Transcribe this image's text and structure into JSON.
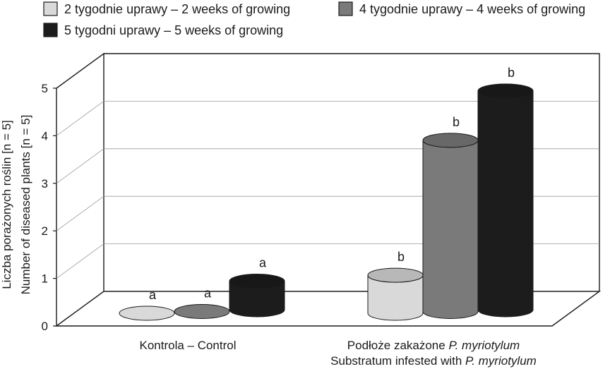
{
  "chart_data": {
    "type": "bar",
    "style": "3d-cylinder",
    "categories": [
      "Kontrola – Control",
      {
        "line1_prefix": "Podłoże zakażone ",
        "line1_italic": "P. myriotylum",
        "line2_prefix": "Substratum infested with ",
        "line2_italic": "P. myriotylum"
      }
    ],
    "series": [
      {
        "name": "2 tygodnie uprawy – 2 weeks of growing",
        "color": "#d9d9d9",
        "values": [
          0,
          0.8
        ],
        "labels": [
          "a",
          "b"
        ]
      },
      {
        "name": "4 tygodnie uprawy – 4 weeks of growing",
        "color": "#7a7a7a",
        "values": [
          0,
          3.6
        ],
        "labels": [
          "a",
          "b"
        ]
      },
      {
        "name": "5 tygodni uprawy – 5 weeks of growing",
        "color": "#1c1c1c",
        "values": [
          0.6,
          4.6
        ],
        "labels": [
          "a",
          "b"
        ]
      }
    ],
    "ylabel": [
      "Liczba porażonych roślin [n = 5]",
      "Number of diseased plants [n = 5]"
    ],
    "yticks": [
      0,
      1,
      2,
      3,
      4,
      5
    ],
    "ylim": [
      0,
      5
    ],
    "grid": true,
    "legend_position": "top"
  }
}
